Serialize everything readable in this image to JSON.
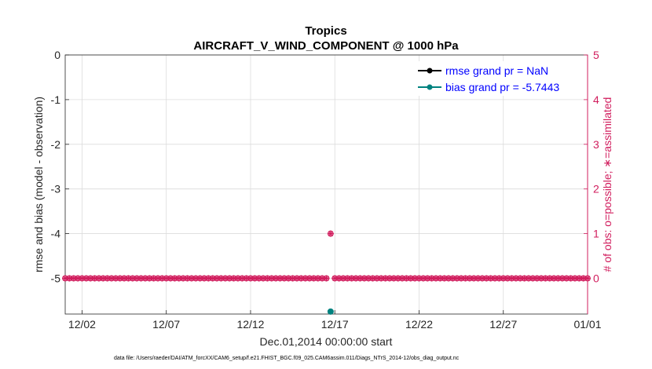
{
  "chart_data": {
    "type": "scatter",
    "title": "Tropics",
    "subtitle": "AIRCRAFT_V_WIND_COMPONENT @ 1000 hPa",
    "xlabel": "Dec.01,2014 00:00:00 start",
    "ylabel_left": "rmse and bias (model - observation)",
    "ylabel_right": "# of obs: o=possible; ∗=assimilated",
    "footnote": "data file: /Users/raeder/DAI/ATM_forcXX/CAM6_setup/f.e21.FHIST_BGC.f09_025.CAM6assim.011/Diags_NTrS_2014-12/obs_diag_output.nc",
    "x_range_days": [
      0.0,
      31.0
    ],
    "x_ticks": [
      {
        "day": 1,
        "label": "12/02"
      },
      {
        "day": 6,
        "label": "12/07"
      },
      {
        "day": 11,
        "label": "12/12"
      },
      {
        "day": 16,
        "label": "12/17"
      },
      {
        "day": 21,
        "label": "12/22"
      },
      {
        "day": 26,
        "label": "12/27"
      },
      {
        "day": 31,
        "label": "01/01"
      }
    ],
    "ylim_left": [
      -5.8,
      0
    ],
    "yticks_left": [
      0,
      -1,
      -2,
      -3,
      -4,
      -5
    ],
    "ylim_right": [
      -0.8,
      5
    ],
    "yticks_right": [
      0,
      1,
      2,
      3,
      4,
      5
    ],
    "grid": true,
    "legend_position": "top-right",
    "series": [
      {
        "name": "rmse grand pr = NaN",
        "color": "#000000",
        "axis": "left",
        "marker": "circle",
        "points": []
      },
      {
        "name": "bias grand pr = -5.7443",
        "color": "#00827f",
        "axis": "left",
        "marker": "circle",
        "points": [
          {
            "day": 15.75,
            "value": -5.7443
          }
        ]
      },
      {
        "name": "obs possible",
        "color": "#d11e5e",
        "axis": "right",
        "marker": "circle-open",
        "points_step_days": 0.25,
        "default_value": 0,
        "special_points": [
          {
            "day": 15.75,
            "value": 1
          }
        ]
      },
      {
        "name": "obs assimilated",
        "color": "#d11e5e",
        "axis": "right",
        "marker": "star",
        "points_step_days": 0.25,
        "default_value": 0,
        "special_points": [
          {
            "day": 15.75,
            "value": 1
          }
        ]
      }
    ]
  }
}
